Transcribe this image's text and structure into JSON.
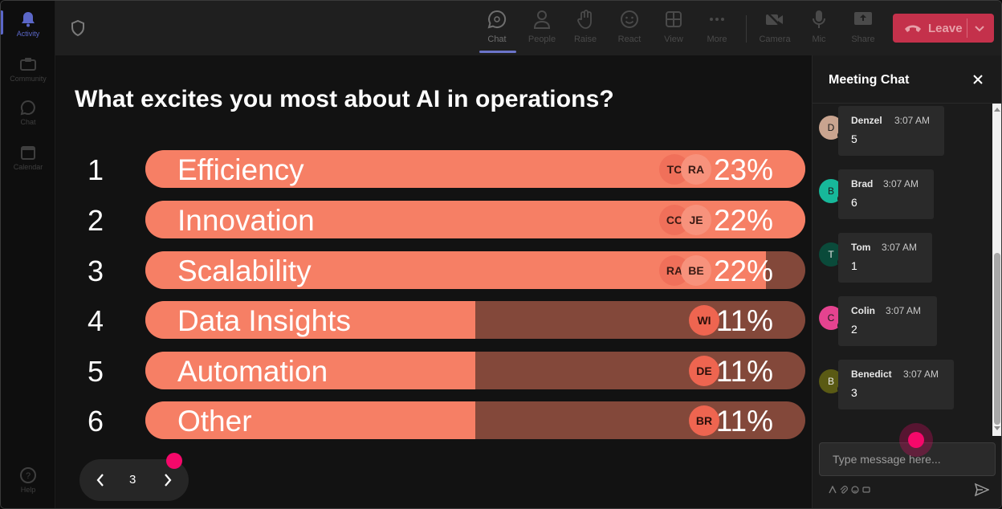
{
  "rail": {
    "items": [
      {
        "label": "Activity",
        "icon": "bell-icon"
      },
      {
        "label": "Community",
        "icon": "community-icon"
      },
      {
        "label": "Chat",
        "icon": "chat-icon"
      },
      {
        "label": "Calendar",
        "icon": "calendar-icon"
      },
      {
        "label": "Help",
        "icon": "help-icon"
      }
    ]
  },
  "toolbar": {
    "chat": "Chat",
    "people": "People",
    "raise": "Raise",
    "react": "React",
    "view": "View",
    "more": "More",
    "camera": "Camera",
    "mic": "Mic",
    "share": "Share",
    "leave": "Leave"
  },
  "poll": {
    "question": "What excites you most about AI in operations?",
    "options": [
      {
        "rank": "1",
        "label": "Efficiency",
        "percent": "23%",
        "fill": 1.0,
        "avatars": [
          "TC",
          "RA"
        ]
      },
      {
        "rank": "2",
        "label": "Innovation",
        "percent": "22%",
        "fill": 1.0,
        "avatars": [
          "CC",
          "JE"
        ]
      },
      {
        "rank": "3",
        "label": "Scalability",
        "percent": "22%",
        "fill": 0.94,
        "avatars": [
          "RA",
          "BE"
        ]
      },
      {
        "rank": "4",
        "label": "Data Insights",
        "percent": "11%",
        "fill": 0.5,
        "avatars": [
          "WI"
        ]
      },
      {
        "rank": "5",
        "label": "Automation",
        "percent": "11%",
        "fill": 0.5,
        "avatars": [
          "DE"
        ]
      },
      {
        "rank": "6",
        "label": "Other",
        "percent": "11%",
        "fill": 0.5,
        "avatars": [
          "BR"
        ]
      }
    ],
    "page": "3"
  },
  "chat": {
    "title": "Meeting Chat",
    "messages": [
      {
        "initial": "D",
        "name": "Denzel",
        "time": "3:07 AM",
        "text": "5",
        "color": "#c9a48f"
      },
      {
        "initial": "B",
        "name": "Brad",
        "time": "3:07 AM",
        "text": "6",
        "color": "#17b89a"
      },
      {
        "initial": "T",
        "name": "Tom",
        "time": "3:07 AM",
        "text": "1",
        "color": "#0a4a3a"
      },
      {
        "initial": "C",
        "name": "Colin",
        "time": "3:07 AM",
        "text": "2",
        "color": "#e4438f"
      },
      {
        "initial": "B",
        "name": "Benedict",
        "time": "3:07 AM",
        "text": "3",
        "color": "#5a5a14"
      }
    ],
    "placeholder": "Type message here..."
  },
  "colors": {
    "bar_fill": "#f67f65",
    "bar_track": "#83483a",
    "leave": "#c4314b",
    "accent": "#5b67c8",
    "cursor": "#f5086a"
  }
}
